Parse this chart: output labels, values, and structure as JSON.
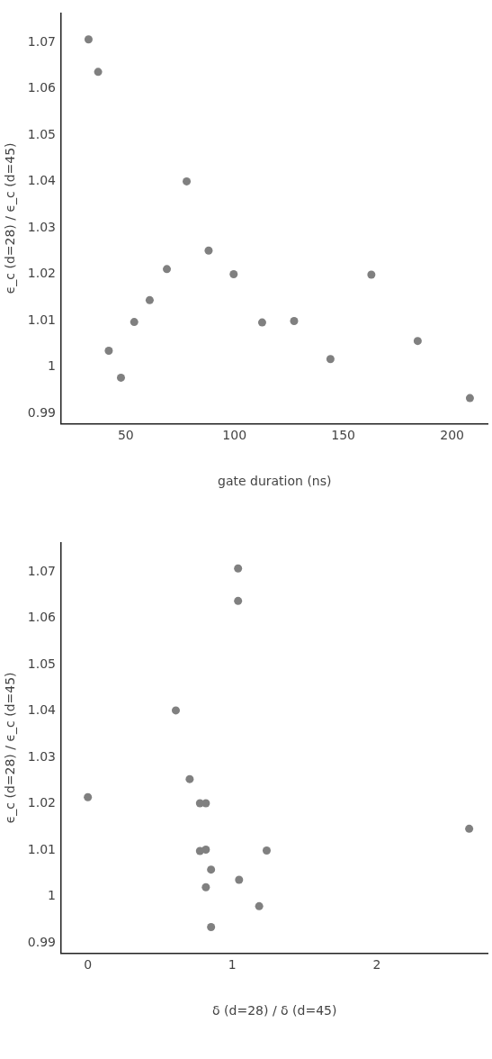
{
  "chart_data": [
    {
      "type": "scatter",
      "xlabel": "gate duration (ns)",
      "ylabel": "ϵ_c (d=28) / ϵ_c (d=45)",
      "marker": "circle",
      "grid": false,
      "xlim": [
        20.3,
        216.5
      ],
      "xticks": [
        50,
        100,
        150,
        200
      ],
      "ylim": [
        0.9878,
        1.0763
      ],
      "yticks": [
        {
          "value": 0.99,
          "label": "0.99"
        },
        {
          "value": 1,
          "label": "1"
        },
        {
          "value": 1.01,
          "label": "1.01"
        },
        {
          "value": 1.02,
          "label": "1.02"
        },
        {
          "value": 1.03,
          "label": "1.03"
        },
        {
          "value": 1.04,
          "label": "1.04"
        },
        {
          "value": 1.05,
          "label": "1.05"
        },
        {
          "value": 1.06,
          "label": "1.06"
        },
        {
          "value": 1.07,
          "label": "1.07"
        }
      ],
      "series": [
        {
          "color": "#808080",
          "x": [
            32.9,
            37.3,
            42.2,
            47.8,
            53.9,
            61,
            68.9,
            78,
            88.1,
            99.6,
            112.7,
            127.4,
            144.1,
            162.9,
            184.2,
            208.2
          ],
          "values": [
            1.0706,
            1.0636,
            1.0035,
            0.9977,
            1.0097,
            1.0144,
            1.0211,
            1.04,
            1.0251,
            1.02,
            1.0096,
            1.0099,
            1.0017,
            1.0199,
            1.0056,
            0.9933
          ]
        }
      ]
    },
    {
      "type": "scatter",
      "xlabel": "δ (d=28) / δ (d=45)",
      "ylabel": "ϵ_c (d=28) / ϵ_c (d=45)",
      "marker": "circle",
      "grid": false,
      "xlim": [
        -0.185,
        2.77
      ],
      "xticks": [
        0,
        1,
        2
      ],
      "ylim": [
        0.9878,
        1.0763
      ],
      "yticks": [
        {
          "value": 0.99,
          "label": "0.99"
        },
        {
          "value": 1,
          "label": "1"
        },
        {
          "value": 1.01,
          "label": "1.01"
        },
        {
          "value": 1.02,
          "label": "1.02"
        },
        {
          "value": 1.03,
          "label": "1.03"
        },
        {
          "value": 1.04,
          "label": "1.04"
        },
        {
          "value": 1.05,
          "label": "1.05"
        },
        {
          "value": 1.06,
          "label": "1.06"
        },
        {
          "value": 1.07,
          "label": "1.07"
        }
      ],
      "series": [
        {
          "color": "#808080",
          "x": [
            1.04,
            1.04,
            0.609,
            0.705,
            0,
            0.776,
            0.817,
            2.64,
            0.776,
            0.817,
            1.238,
            0.853,
            1.047,
            0.817,
            1.186,
            0.853
          ],
          "values": [
            1.0707,
            1.0637,
            1.0401,
            1.0253,
            1.0214,
            1.0201,
            1.0201,
            1.0146,
            1.0098,
            1.0101,
            1.0099,
            1.0058,
            1.0036,
            1.002,
            0.9979,
            0.9934
          ]
        }
      ]
    }
  ]
}
